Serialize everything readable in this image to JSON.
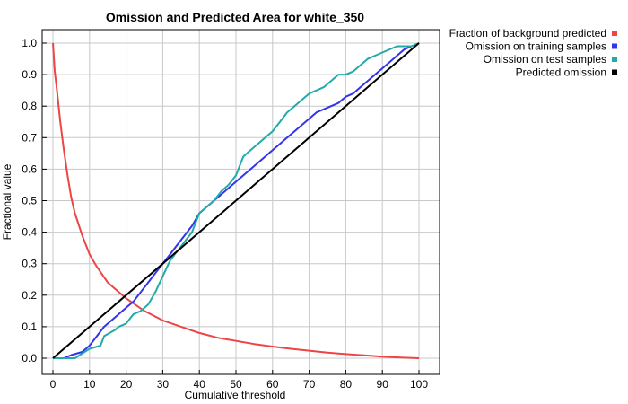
{
  "chart_data": {
    "type": "line",
    "title": "Omission and Predicted Area for white_350",
    "xlabel": "Cumulative threshold",
    "ylabel": "Fractional value",
    "xlim": [
      0,
      100
    ],
    "ylim": [
      0,
      1
    ],
    "xticks": [
      "0",
      "10",
      "20",
      "30",
      "40",
      "50",
      "60",
      "70",
      "80",
      "90",
      "100"
    ],
    "yticks": [
      "0.0",
      "0.1",
      "0.2",
      "0.3",
      "0.4",
      "0.5",
      "0.6",
      "0.7",
      "0.8",
      "0.9",
      "1.0"
    ],
    "grid": true,
    "legend_position": "outside-right",
    "series": [
      {
        "name": "Fraction of background predicted",
        "color": "#ee4444",
        "x": [
          0,
          0.5,
          1,
          2,
          3,
          4,
          5,
          6,
          8,
          10,
          12,
          15,
          18,
          20,
          25,
          30,
          35,
          40,
          45,
          50,
          55,
          60,
          65,
          70,
          75,
          80,
          85,
          90,
          95,
          100
        ],
        "y": [
          1.0,
          0.91,
          0.86,
          0.75,
          0.66,
          0.58,
          0.51,
          0.46,
          0.39,
          0.33,
          0.29,
          0.24,
          0.21,
          0.19,
          0.15,
          0.12,
          0.1,
          0.08,
          0.065,
          0.055,
          0.045,
          0.037,
          0.03,
          0.024,
          0.018,
          0.013,
          0.009,
          0.005,
          0.002,
          0.0
        ]
      },
      {
        "name": "Omission on training samples",
        "color": "#3333ee",
        "x": [
          0,
          3,
          5,
          8,
          10,
          12,
          14,
          16,
          18,
          20,
          22,
          24,
          26,
          28,
          30,
          32,
          34,
          36,
          38,
          40,
          42,
          44,
          46,
          48,
          50,
          52,
          54,
          56,
          58,
          60,
          62,
          64,
          66,
          68,
          70,
          72,
          74,
          76,
          78,
          80,
          82,
          84,
          86,
          88,
          90,
          92,
          94,
          96,
          98,
          100
        ],
        "y": [
          0.0,
          0.0,
          0.01,
          0.02,
          0.04,
          0.07,
          0.1,
          0.12,
          0.14,
          0.16,
          0.18,
          0.21,
          0.24,
          0.27,
          0.3,
          0.33,
          0.36,
          0.39,
          0.42,
          0.46,
          0.48,
          0.5,
          0.52,
          0.54,
          0.56,
          0.58,
          0.6,
          0.62,
          0.64,
          0.66,
          0.68,
          0.7,
          0.72,
          0.74,
          0.76,
          0.78,
          0.79,
          0.8,
          0.81,
          0.83,
          0.84,
          0.86,
          0.88,
          0.9,
          0.92,
          0.94,
          0.96,
          0.98,
          0.99,
          1.0
        ]
      },
      {
        "name": "Omission on test samples",
        "color": "#22aaaa",
        "x": [
          0,
          3,
          6,
          10,
          13,
          14,
          17,
          18,
          20,
          22,
          24,
          26,
          28,
          30,
          32,
          34,
          36,
          38,
          40,
          42,
          44,
          46,
          48,
          50,
          52,
          54,
          56,
          58,
          60,
          62,
          64,
          66,
          68,
          70,
          72,
          74,
          76,
          78,
          80,
          82,
          84,
          86,
          88,
          90,
          92,
          94,
          96,
          98,
          100
        ],
        "y": [
          0.0,
          0.0,
          0.0,
          0.03,
          0.04,
          0.07,
          0.09,
          0.1,
          0.11,
          0.14,
          0.15,
          0.17,
          0.21,
          0.26,
          0.31,
          0.34,
          0.37,
          0.4,
          0.46,
          0.48,
          0.5,
          0.53,
          0.55,
          0.58,
          0.64,
          0.66,
          0.68,
          0.7,
          0.72,
          0.75,
          0.78,
          0.8,
          0.82,
          0.84,
          0.85,
          0.86,
          0.88,
          0.9,
          0.9,
          0.91,
          0.93,
          0.95,
          0.96,
          0.97,
          0.98,
          0.99,
          0.99,
          0.99,
          1.0
        ]
      },
      {
        "name": "Predicted omission",
        "color": "#000000",
        "x": [
          0,
          100
        ],
        "y": [
          0.0,
          1.0
        ]
      }
    ]
  }
}
